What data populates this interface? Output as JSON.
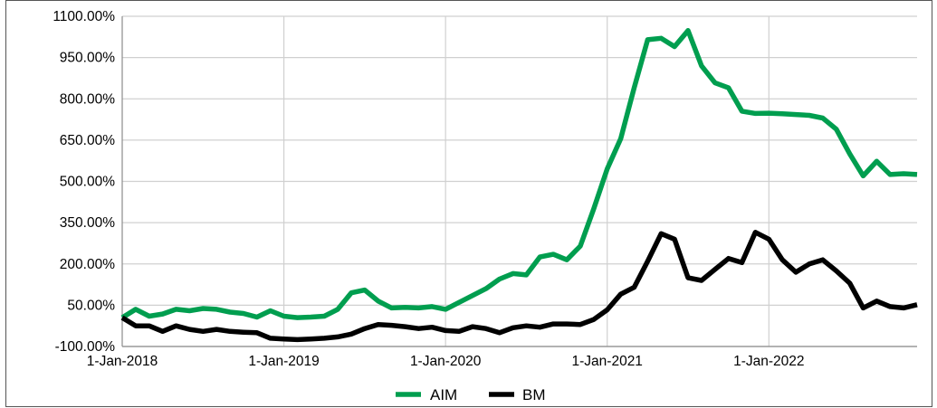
{
  "chart_data": {
    "type": "line",
    "title": "",
    "xlabel": "",
    "ylabel": "",
    "ylim": [
      -100,
      1100
    ],
    "yticks": [
      -100,
      50,
      200,
      350,
      500,
      650,
      800,
      950,
      1100
    ],
    "ytick_labels": [
      "-100.00%",
      "50.00%",
      "200.00%",
      "350.00%",
      "500.00%",
      "650.00%",
      "800.00%",
      "950.00%",
      "1100.00%"
    ],
    "xlim": [
      "2018-01-01",
      "2022-12-01"
    ],
    "xticks": [
      "2018-01-01",
      "2019-01-01",
      "2020-01-01",
      "2021-01-01",
      "2022-01-01"
    ],
    "xtick_labels": [
      "1-Jan-2018",
      "1-Jan-2019",
      "1-Jan-2020",
      "1-Jan-2021",
      "1-Jan-2022"
    ],
    "grid": true,
    "legend_position": "bottom",
    "x": [
      "2018-01",
      "2018-02",
      "2018-03",
      "2018-04",
      "2018-05",
      "2018-06",
      "2018-07",
      "2018-08",
      "2018-09",
      "2018-10",
      "2018-11",
      "2018-12",
      "2019-01",
      "2019-02",
      "2019-03",
      "2019-04",
      "2019-05",
      "2019-06",
      "2019-07",
      "2019-08",
      "2019-09",
      "2019-10",
      "2019-11",
      "2019-12",
      "2020-01",
      "2020-02",
      "2020-03",
      "2020-04",
      "2020-05",
      "2020-06",
      "2020-07",
      "2020-08",
      "2020-09",
      "2020-10",
      "2020-11",
      "2020-12",
      "2021-01",
      "2021-02",
      "2021-03",
      "2021-04",
      "2021-05",
      "2021-06",
      "2021-07",
      "2021-08",
      "2021-09",
      "2021-10",
      "2021-11",
      "2021-12",
      "2022-01",
      "2022-02",
      "2022-03",
      "2022-04",
      "2022-05",
      "2022-06",
      "2022-07",
      "2022-08",
      "2022-09",
      "2022-10",
      "2022-11",
      "2022-12"
    ],
    "series": [
      {
        "name": "AIM",
        "color": "#009e4f",
        "values": [
          5,
          35,
          10,
          18,
          35,
          30,
          38,
          35,
          25,
          20,
          7,
          30,
          10,
          5,
          7,
          10,
          35,
          95,
          105,
          65,
          40,
          42,
          40,
          45,
          35,
          60,
          85,
          110,
          145,
          165,
          160,
          225,
          235,
          215,
          265,
          400,
          545,
          655,
          840,
          1015,
          1020,
          990,
          1048,
          920,
          858,
          840,
          755,
          747,
          748,
          746,
          743,
          740,
          730,
          690,
          600,
          520,
          573,
          525,
          528,
          525
        ]
      },
      {
        "name": "BM",
        "color": "#000000",
        "values": [
          5,
          -25,
          -25,
          -45,
          -25,
          -38,
          -45,
          -38,
          -45,
          -48,
          -50,
          -70,
          -73,
          -75,
          -73,
          -70,
          -65,
          -55,
          -35,
          -20,
          -23,
          -28,
          -35,
          -30,
          -42,
          -45,
          -28,
          -35,
          -50,
          -32,
          -25,
          -30,
          -18,
          -18,
          -20,
          -2,
          33,
          90,
          115,
          210,
          310,
          290,
          150,
          140,
          180,
          220,
          205,
          315,
          290,
          215,
          170,
          200,
          215,
          175,
          130,
          40,
          65,
          45,
          40,
          52
        ]
      }
    ]
  }
}
